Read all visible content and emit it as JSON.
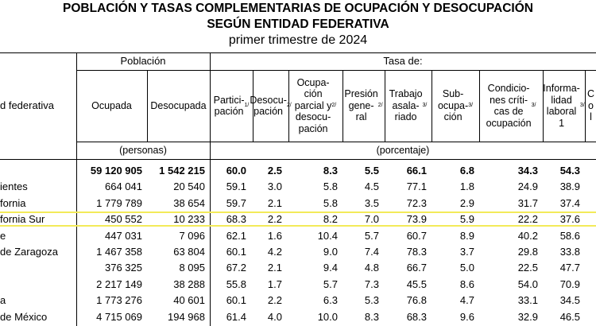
{
  "title_line1": "POBLACIÓN Y TASAS COMPLEMENTARIAS DE OCUPACIÓN Y DESOCUPACIÓN",
  "title_line2": "SEGÚN ENTIDAD FEDERATIVA",
  "subtitle": "primer trimestre de 2024",
  "header": {
    "entidad": "d federativa",
    "poblacion": "Población",
    "tasa": "Tasa de:",
    "ocupada": "Ocupada",
    "desocupada": "Desocupada",
    "participacion": "Partici-\npación",
    "participacion_note": "1/",
    "desocupacion": "Desocu-\npación",
    "desocupacion_note": "2/",
    "ocup_parcial": "Ocupa-\nción\nparcial y\ndesocu-\npación",
    "ocup_parcial_note": "2/",
    "presion": "Presión\ngene-\nral",
    "presion_note": "2/",
    "trabajo": "Trabajo\nasala-\nriado",
    "trabajo_note": "3/",
    "subocupacion": "Sub-\nocupa-\nción",
    "subocupacion_note": "3/",
    "condiciones": "Condicio-\nnes críti-\ncas de\nocupación",
    "condiciones_note": "3/",
    "informalidad": "Informa-\nlidad\nlaboral\n1",
    "informalidad_note": "3/",
    "last_col_partial": "C\no\nl",
    "personas": "(personas)",
    "porcentaje": "(porcentaje)"
  },
  "rows": [
    {
      "name": "",
      "values": [
        "59 120 905",
        "1 542 215",
        "60.0",
        "2.5",
        "8.3",
        "5.5",
        "66.1",
        "6.8",
        "34.3",
        "54.3"
      ],
      "total": true
    },
    {
      "name": "ientes",
      "values": [
        "664 041",
        "20 540",
        "59.1",
        "3.0",
        "5.8",
        "4.5",
        "77.1",
        "1.8",
        "24.9",
        "38.9"
      ]
    },
    {
      "name": "fornia",
      "values": [
        "1 779 789",
        "38 654",
        "59.7",
        "2.1",
        "5.8",
        "3.5",
        "72.3",
        "2.9",
        "31.7",
        "37.4"
      ]
    },
    {
      "name": "fornia Sur",
      "values": [
        "450 552",
        "10 233",
        "68.3",
        "2.2",
        "8.2",
        "7.0",
        "73.9",
        "5.9",
        "22.2",
        "37.6"
      ],
      "highlight": true
    },
    {
      "name": "e",
      "values": [
        "447 031",
        "7 096",
        "62.1",
        "1.6",
        "10.4",
        "5.7",
        "60.7",
        "8.9",
        "40.2",
        "58.6"
      ]
    },
    {
      "name": "de Zaragoza",
      "values": [
        "1 467 358",
        "63 804",
        "60.1",
        "4.2",
        "9.0",
        "7.4",
        "78.3",
        "3.7",
        "29.8",
        "33.8"
      ]
    },
    {
      "name": "",
      "values": [
        "376 325",
        "8 095",
        "67.2",
        "2.1",
        "9.4",
        "4.8",
        "66.7",
        "5.0",
        "22.5",
        "47.7"
      ]
    },
    {
      "name": "",
      "values": [
        "2 217 149",
        "38 288",
        "55.8",
        "1.7",
        "5.7",
        "7.3",
        "45.5",
        "8.6",
        "54.0",
        "70.9"
      ]
    },
    {
      "name": "a",
      "values": [
        "1 773 276",
        "40 601",
        "60.1",
        "2.2",
        "6.3",
        "5.3",
        "76.8",
        "4.7",
        "33.1",
        "34.5"
      ]
    },
    {
      "name": "de México",
      "values": [
        "4 715 069",
        "194 968",
        "61.4",
        "4.0",
        "10.0",
        "8.3",
        "68.3",
        "9.6",
        "32.9",
        "46.5"
      ]
    }
  ]
}
